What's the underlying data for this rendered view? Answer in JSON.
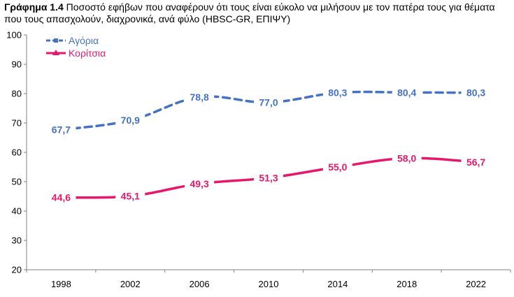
{
  "title": {
    "label": "Γράφημα 1.4",
    "text": "Ποσοστό εφήβων που αναφέρουν ότι τους είναι εύκολο να μιλήσουν με τον πατέρα τους για θέματα που τους απασχολούν, διαχρονικά, ανά φύλο (HBSC-GR, ΕΠΙΨΥ)"
  },
  "chart_data": {
    "type": "line",
    "categories": [
      "1998",
      "2002",
      "2006",
      "2010",
      "2014",
      "2018",
      "2022"
    ],
    "ylim": [
      20,
      100
    ],
    "yticks": [
      20,
      30,
      40,
      50,
      60,
      70,
      80,
      90,
      100
    ],
    "grid": false,
    "legend_position": "top-left",
    "series": [
      {
        "name": "Αγόρια",
        "color": "#4472C4",
        "style": "dashed",
        "values": [
          67.7,
          70.9,
          78.8,
          77.0,
          80.3,
          80.4,
          80.3
        ],
        "labels": [
          "67,7",
          "70,9",
          "78,8",
          "77,0",
          "80,3",
          "80,4",
          "80,3"
        ]
      },
      {
        "name": "Κορίτσια",
        "color": "#E8176B",
        "style": "solid",
        "values": [
          44.6,
          45.1,
          49.3,
          51.3,
          55.0,
          58.0,
          56.7
        ],
        "labels": [
          "44,6",
          "45,1",
          "49,3",
          "51,3",
          "55,0",
          "58,0",
          "56,7"
        ]
      }
    ]
  }
}
